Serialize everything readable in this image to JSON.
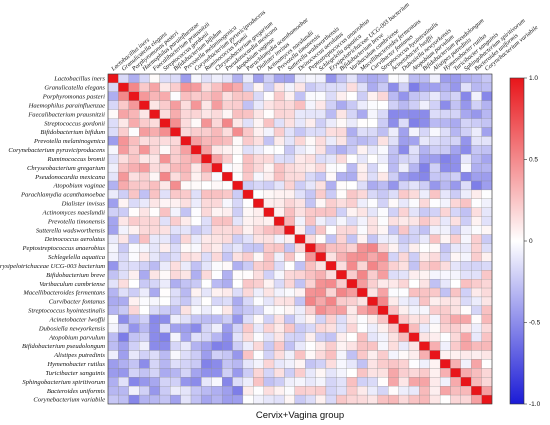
{
  "chart_data": {
    "type": "heatmap",
    "title": "",
    "xlabel": "Cervix+Vagina group",
    "colorbar": {
      "range": [
        -1.0,
        1.0
      ],
      "ticks": [
        "1.0",
        "0.5",
        "0",
        "-0.5",
        "-1.0"
      ],
      "colors": {
        "positive": "#e8151a",
        "zero": "#ffffff",
        "negative": "#1b1bd6"
      }
    },
    "row_labels": [
      "Lactobacillus iners",
      "Granulicatella elegans",
      "Porphyromonas pasteri",
      "Haemophilus parainfluenzae",
      "Faecalibacterium prausnitzii",
      "Streptococcus gordonii",
      "Bifidobacterium bifidum",
      "Prevotella melaninogenica",
      "Corynebacterium pyruviciproducens",
      "Ruminococcus bromii",
      "Chryseobacterium gregarium",
      "Pseudonocardia mexicana",
      "Atopobium vaginae",
      "Parachlamydia acanthamoebae",
      "Dialister invisus",
      "Actinomyces naeslundii",
      "Prevotella timonensis",
      "Sutterella wadsworthensis",
      "Deinococcus aerolatus",
      "Peptostreptococcus anaerobius",
      "Schlegelella aquatica",
      "Erysipelotrichaceae UCG-003 bacterium",
      "Bifidobacterium breve",
      "Varibaculum cambriense",
      "Macellibacteroides fermentans",
      "Curvibacter fontanus",
      "Streptococcus hyointestinalis",
      "Acinetobacter lwoffii",
      "Dubosiella newyorkensis",
      "Atopobium parvulum",
      "Bifidobacterium pseudolongum",
      "Alistipes putredinis",
      "Hymenobacter rutilus",
      "Turicibacter sanguinis",
      "Sphingobacterium spiritivorum",
      "Bacteroides uniformis",
      "Corynebacterium variabile"
    ],
    "column_labels": [
      "Lactobacillus iners",
      "Granulicatella elegans",
      "Porphyromonas pasteri",
      "Haemophilus parainfluenzae",
      "Faecalibacterium prausnitzii",
      "Streptococcus gordonii",
      "Bifidobacterium bifidum",
      "Prevotella melaninogenica",
      "Corynebacterium pyruviciproducens",
      "Ruminococcus bromii",
      "Chryseobacterium gregarium",
      "Pseudonocardia mexicana",
      "Atopobium vaginae",
      "Parachlamydia acanthamoebae",
      "Dialister invisus",
      "Actinomyces naeslundii",
      "Prevotella timonensis",
      "Sutterella wadsworthensis",
      "Deinococcus aerolatus",
      "Peptostreptococcus anaerobius",
      "Schlegelella aquatica",
      "Erysipelotrichaceae UCG-003 bacterium",
      "Bifidobacterium breve",
      "Varibaculum cambriense",
      "Macellibacteroides fermentans",
      "Curvibacter fontanus",
      "Streptococcus hyointestinalis",
      "Acinetobacter lwoffii",
      "Dubosiella newyorkensis",
      "Atopobium parvulum",
      "Bifidobacterium pseudolongum",
      "Alistipes putredinis",
      "Hymenobacter rutilus",
      "Turicibacter sanguinis",
      "Sphingobacterium spiritivorum",
      "Bacteroides uniformis",
      "Corynebacterium variabile"
    ],
    "block_structure": {
      "note_diagonal": 1.0,
      "clusters": [
        [
          0,
          0,
          -0.2
        ],
        [
          1,
          12,
          0.25
        ],
        [
          13,
          18,
          0.1
        ],
        [
          19,
          26,
          0.3
        ],
        [
          27,
          36,
          0.15
        ]
      ],
      "cross": [
        [
          [
            1,
            12
          ],
          [
            27,
            36
          ],
          -0.3
        ],
        [
          [
            1,
            12
          ],
          [
            19,
            26
          ],
          -0.1
        ],
        [
          [
            0,
            0
          ],
          [
            1,
            36
          ],
          -0.25
        ]
      ]
    }
  }
}
